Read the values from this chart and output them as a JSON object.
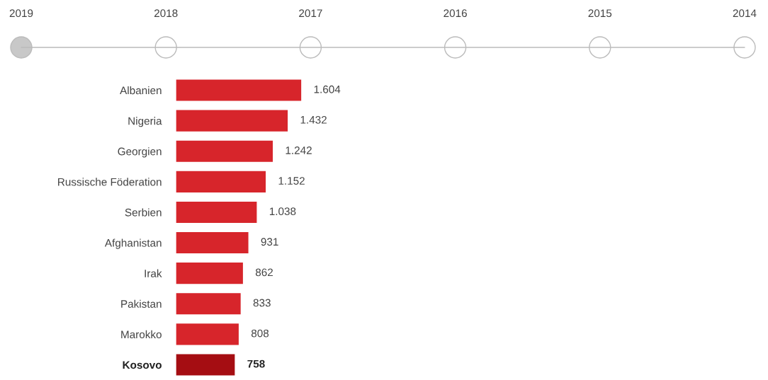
{
  "chart_data": {
    "type": "bar",
    "orientation": "horizontal",
    "categories": [
      "Albanien",
      "Nigeria",
      "Georgien",
      "Russische Föderation",
      "Serbien",
      "Afghanistan",
      "Irak",
      "Pakistan",
      "Marokko",
      "Kosovo"
    ],
    "values": [
      1604,
      1432,
      1242,
      1152,
      1038,
      931,
      862,
      833,
      808,
      758
    ],
    "value_labels": [
      "1.604",
      "1.432",
      "1.242",
      "1.152",
      "1.038",
      "931",
      "862",
      "833",
      "808",
      "758"
    ],
    "colors": [
      "#d7252b",
      "#d7252b",
      "#d7252b",
      "#d7252b",
      "#d7252b",
      "#d7252b",
      "#d7252b",
      "#d7252b",
      "#d7252b",
      "#a50d12"
    ],
    "annotations": [
      "2019",
      "2018",
      "2017",
      "2016",
      "2015",
      "2014"
    ],
    "grid": false,
    "legend": false
  }
}
